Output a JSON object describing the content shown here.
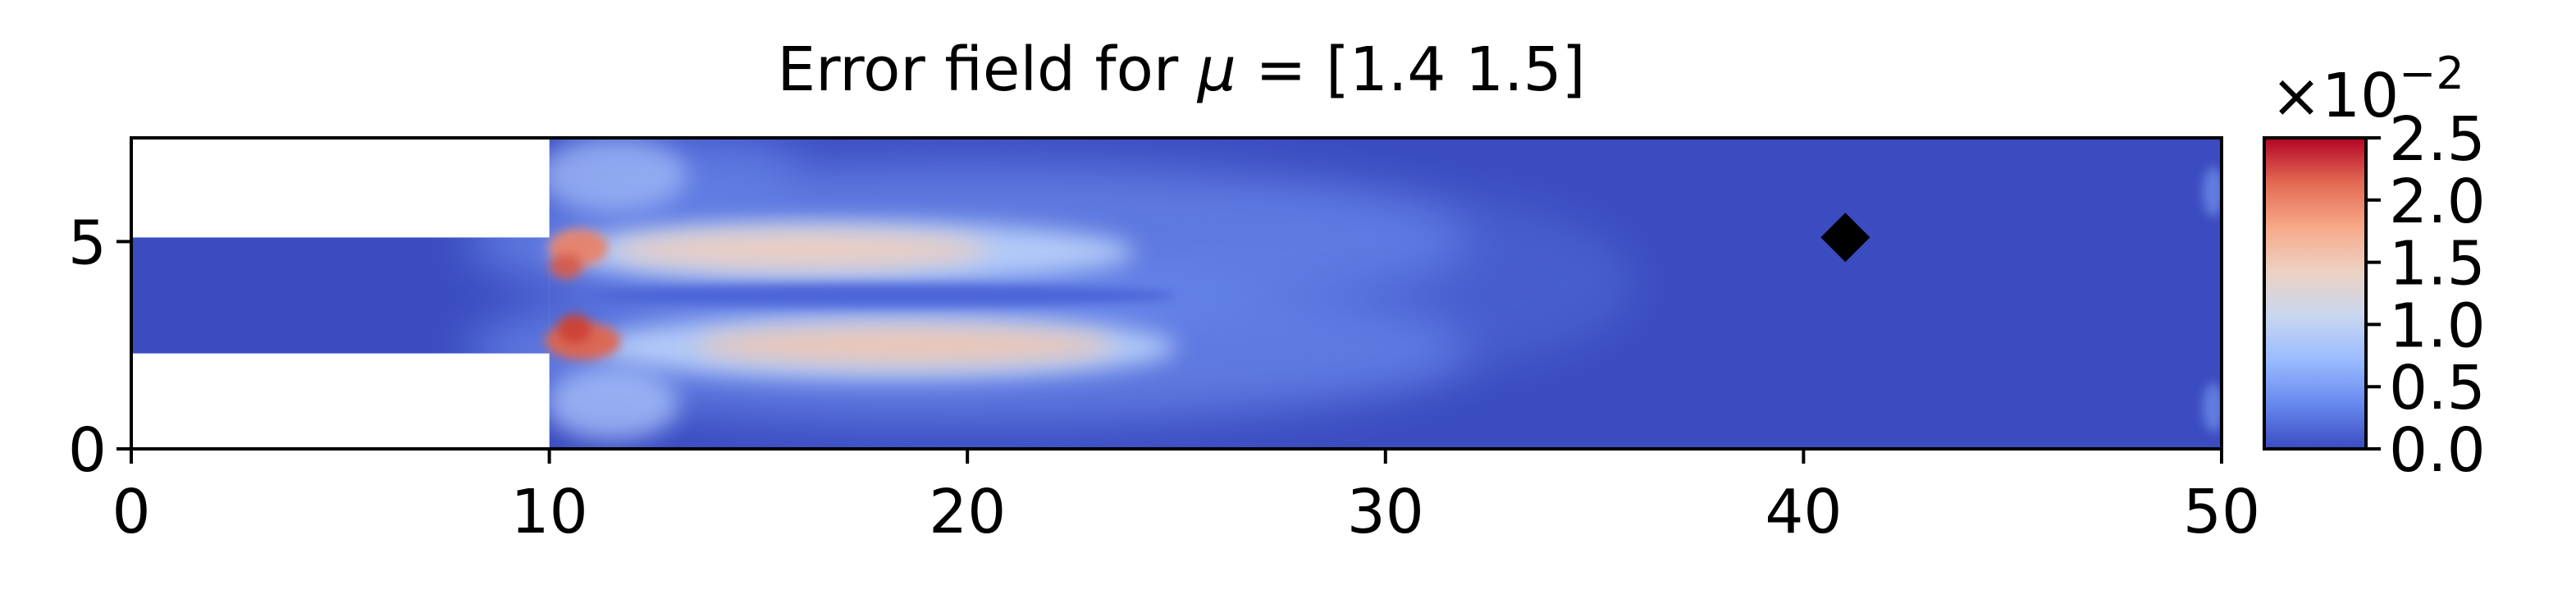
{
  "chart_data": {
    "type": "heatmap",
    "title": "Error field for μ = [1.4 1.5]",
    "title_prefix": "Error field for ",
    "title_symbol": "μ",
    "title_suffix": " = [1.4 1.5]",
    "xlabel": "",
    "ylabel": "",
    "xlim": [
      0,
      50
    ],
    "ylim": [
      0,
      7.5
    ],
    "x_ticks": [
      0,
      10,
      20,
      30,
      40,
      50
    ],
    "y_ticks": [
      0,
      5
    ],
    "domain": {
      "inlet_channel": {
        "x": [
          0,
          10
        ],
        "y": [
          2.3,
          5.1
        ]
      },
      "expansion": {
        "x": [
          10,
          50
        ],
        "y": [
          0,
          7.5
        ]
      }
    },
    "hot_spots": [
      {
        "x": 10.5,
        "y": 4.9,
        "value": 0.025
      },
      {
        "x": 10.6,
        "y": 2.6,
        "value": 0.025
      },
      {
        "x": 16,
        "y": 4.8,
        "value": 0.017
      },
      {
        "x": 18,
        "y": 2.5,
        "value": 0.016
      }
    ],
    "marker": {
      "x": 41,
      "y": 5.1,
      "shape": "diamond",
      "color": "#000000"
    },
    "colorbar": {
      "colormap": "coolwarm",
      "min": 0.0,
      "max": 2.5,
      "ticks": [
        "0.0",
        "0.5",
        "1.0",
        "1.5",
        "2.0",
        "2.5"
      ],
      "scale_label": "×10",
      "scale_exponent": "−2",
      "colors": [
        "#3b4cc0",
        "#6788ee",
        "#9abbff",
        "#c9d7f0",
        "#edd1c2",
        "#f7a889",
        "#e26952",
        "#b40426"
      ]
    }
  }
}
